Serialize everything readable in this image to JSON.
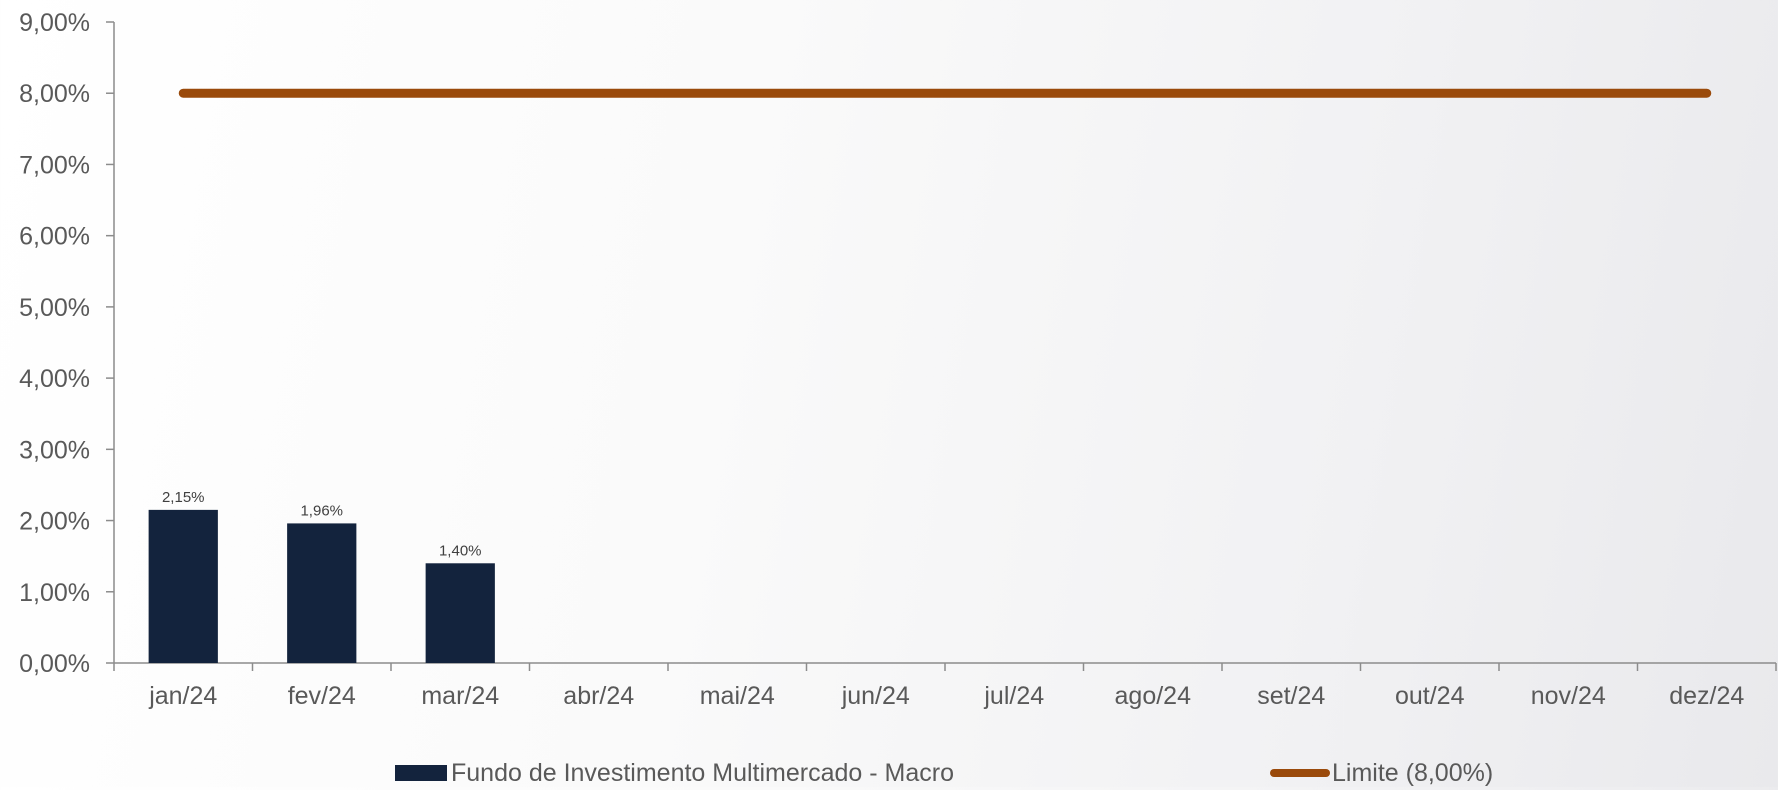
{
  "chart_data": {
    "type": "bar",
    "categories": [
      "jan/24",
      "fev/24",
      "mar/24",
      "abr/24",
      "mai/24",
      "jun/24",
      "jul/24",
      "ago/24",
      "set/24",
      "out/24",
      "nov/24",
      "dez/24"
    ],
    "series": [
      {
        "name": "Fundo de Investimento Multimercado - Macro",
        "type": "bar",
        "values": [
          2.15,
          1.96,
          1.4,
          null,
          null,
          null,
          null,
          null,
          null,
          null,
          null,
          null
        ],
        "data_labels": [
          "2,15%",
          "1,96%",
          "1,40%",
          "",
          "",
          "",
          "",
          "",
          "",
          "",
          "",
          ""
        ],
        "color": "#13233d"
      },
      {
        "name": "Limite (8,00%)",
        "type": "line",
        "values": [
          8,
          8,
          8,
          8,
          8,
          8,
          8,
          8,
          8,
          8,
          8,
          8
        ],
        "color": "#9a4a0b"
      }
    ],
    "ylim": [
      0,
      9
    ],
    "yticks": [
      0,
      1,
      2,
      3,
      4,
      5,
      6,
      7,
      8,
      9
    ],
    "ytick_labels": [
      "0,00%",
      "1,00%",
      "2,00%",
      "3,00%",
      "4,00%",
      "5,00%",
      "6,00%",
      "7,00%",
      "8,00%",
      "9,00%"
    ],
    "grid": false,
    "legend_position": "bottom"
  }
}
